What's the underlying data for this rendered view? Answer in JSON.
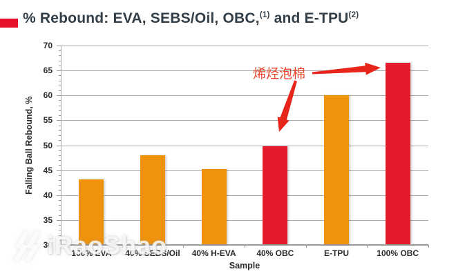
{
  "title": {
    "text": "% Rebound: EVA, SEBS/Oil, OBC,",
    "sup1": "(1)",
    "text2": " and E-TPU",
    "sup2": "(2)",
    "bullet_color": "#E8112C",
    "text_color": "#333F48"
  },
  "chart_data": {
    "type": "bar",
    "title": "% Rebound: EVA, SEBS/Oil, OBC,(1) and E-TPU(2)",
    "categories": [
      "100% EVA",
      "40% SEBS/Oil",
      "40% H-EVA",
      "40% OBC",
      "E-TPU",
      "100% OBC"
    ],
    "values": [
      43.2,
      48.0,
      45.2,
      49.8,
      60.0,
      66.5
    ],
    "bar_colors": [
      "#F0920C",
      "#F0920C",
      "#F0920C",
      "#E51B2D",
      "#F0920C",
      "#E51B2D"
    ],
    "xlabel": "Sample",
    "ylabel": "Falling Ball Rebound, %",
    "ylim": [
      30,
      70
    ],
    "yticks": [
      30,
      35,
      40,
      45,
      50,
      55,
      60,
      65,
      70
    ],
    "grid": true,
    "legend": "none",
    "annotation": {
      "text": "烯烃泡棉",
      "color": "#E8472E",
      "arrow_color": "#E8251A",
      "points_to": [
        "40% OBC",
        "100% OBC"
      ]
    }
  },
  "watermark": {
    "text": "iRaoShao"
  },
  "colors": {
    "orange_bar": "#F0920C",
    "red_bar": "#E51B2D",
    "gridline": "#ABABAB",
    "axis_line": "#9A9A9A",
    "tick_text": "#2B2B2B",
    "background": "#FFFFFF"
  }
}
